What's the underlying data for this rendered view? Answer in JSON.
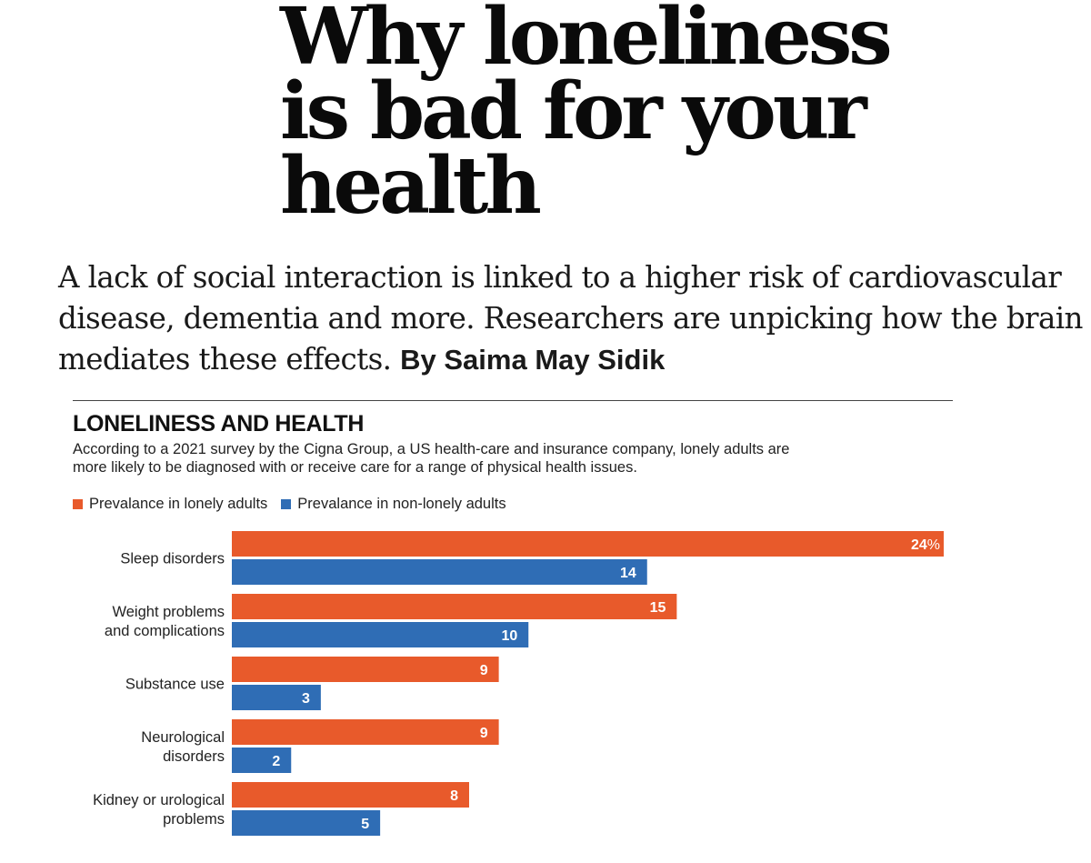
{
  "article": {
    "headline_lines": [
      "Why loneliness",
      "is bad for your",
      "health"
    ],
    "standfirst_lines": [
      "A lack of social interaction is linked to a higher risk of cardiovascular",
      "disease, dementia and more. Researchers are unpicking how the brain",
      "mediates these effects."
    ],
    "byline": "By Saima May Sidik"
  },
  "chart_data": {
    "type": "bar",
    "orientation": "horizontal",
    "title": "LONELINESS AND HEALTH",
    "subtitle_lines": [
      "According to a 2021 survey by the Cigna Group, a US health-care and insurance company, lonely adults are",
      "more likely to be diagnosed with or receive care for a range of physical health issues."
    ],
    "categories": [
      [
        "Sleep disorders"
      ],
      [
        "Weight problems",
        "and complications"
      ],
      [
        "Substance use"
      ],
      [
        "Neurological",
        "disorders"
      ],
      [
        "Kidney or urological",
        "problems"
      ]
    ],
    "series": [
      {
        "name": "Prevalance in lonely adults",
        "color": "#e85a2b",
        "values": [
          24,
          15,
          9,
          9,
          8
        ]
      },
      {
        "name": "Prevalance in non-lonely adults",
        "color": "#2f6db5",
        "values": [
          14,
          10,
          3,
          2,
          5
        ]
      }
    ],
    "value_suffix": "%",
    "xlabel": "",
    "ylabel": "",
    "xlim": [
      0,
      24
    ],
    "grid": false,
    "legend": "top-left"
  }
}
